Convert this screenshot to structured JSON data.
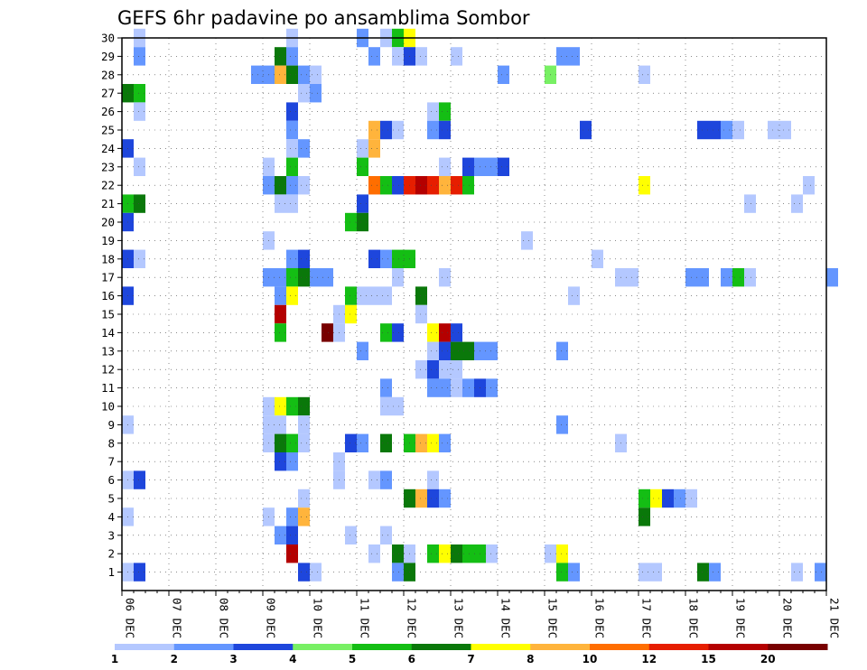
{
  "chart_data": {
    "type": "heatmap",
    "title": "GEFS 6hr padavine po ansamblima Sombor",
    "xlabel": "",
    "ylabel": "",
    "x_tick_labels": [
      "06 DEC",
      "07 DEC",
      "08 DEC",
      "09 DEC",
      "10 DEC",
      "11 DEC",
      "12 DEC",
      "13 DEC",
      "14 DEC",
      "15 DEC",
      "16 DEC",
      "17 DEC",
      "18 DEC",
      "19 DEC",
      "20 DEC",
      "21 DEC"
    ],
    "y_tick_labels": [
      "1",
      "2",
      "3",
      "4",
      "5",
      "6",
      "7",
      "8",
      "9",
      "10",
      "11",
      "12",
      "13",
      "14",
      "15",
      "16",
      "17",
      "18",
      "19",
      "20",
      "21",
      "22",
      "23",
      "24",
      "25",
      "26",
      "27",
      "28",
      "29",
      "30"
    ],
    "x_unit": "6-hour step",
    "xlim_steps": [
      0,
      60
    ],
    "ylim_members": [
      0,
      30
    ],
    "grid": true,
    "colorbar": {
      "levels": [
        "1",
        "2",
        "3",
        "4",
        "5",
        "6",
        "7",
        "8",
        "10",
        "12",
        "15",
        "20"
      ],
      "colors": [
        "#b4c8ff",
        "#6496ff",
        "#1e46dc",
        "#78f064",
        "#14be14",
        "#0a780a",
        "#ffff00",
        "#ffb43c",
        "#ff6e00",
        "#e61e00",
        "#b40000",
        "#780000"
      ]
    },
    "cells_note": "each cell: step = 6-hour step index from 06 DEC 00Z, member = ensemble member (0 = control row below 1), bin = colorbar bin index",
    "cells": [
      {
        "step": 1,
        "member": 30,
        "bin": 0
      },
      {
        "step": 14,
        "member": 30,
        "bin": 0
      },
      {
        "step": 20,
        "member": 30,
        "bin": 1
      },
      {
        "step": 22,
        "member": 30,
        "bin": 0
      },
      {
        "step": 23,
        "member": 30,
        "bin": 4
      },
      {
        "step": 24,
        "member": 30,
        "bin": 6
      },
      {
        "step": 1,
        "member": 29,
        "bin": 1
      },
      {
        "step": 13,
        "member": 29,
        "bin": 5
      },
      {
        "step": 14,
        "member": 29,
        "bin": 1
      },
      {
        "step": 21,
        "member": 29,
        "bin": 1
      },
      {
        "step": 23,
        "member": 29,
        "bin": 0
      },
      {
        "step": 24,
        "member": 29,
        "bin": 2
      },
      {
        "step": 25,
        "member": 29,
        "bin": 0
      },
      {
        "step": 28,
        "member": 29,
        "bin": 0
      },
      {
        "step": 37,
        "member": 29,
        "bin": 1
      },
      {
        "step": 38,
        "member": 29,
        "bin": 1
      },
      {
        "step": 11,
        "member": 28,
        "bin": 1
      },
      {
        "step": 12,
        "member": 28,
        "bin": 1
      },
      {
        "step": 13,
        "member": 28,
        "bin": 7
      },
      {
        "step": 14,
        "member": 28,
        "bin": 5
      },
      {
        "step": 15,
        "member": 28,
        "bin": 1
      },
      {
        "step": 16,
        "member": 28,
        "bin": 0
      },
      {
        "step": 32,
        "member": 28,
        "bin": 1
      },
      {
        "step": 36,
        "member": 28,
        "bin": 3
      },
      {
        "step": 44,
        "member": 28,
        "bin": 0
      },
      {
        "step": 0,
        "member": 27,
        "bin": 5
      },
      {
        "step": 1,
        "member": 27,
        "bin": 4
      },
      {
        "step": 15,
        "member": 27,
        "bin": 0
      },
      {
        "step": 16,
        "member": 27,
        "bin": 1
      },
      {
        "step": 1,
        "member": 26,
        "bin": 0
      },
      {
        "step": 14,
        "member": 26,
        "bin": 2
      },
      {
        "step": 26,
        "member": 26,
        "bin": 0
      },
      {
        "step": 27,
        "member": 26,
        "bin": 4
      },
      {
        "step": 14,
        "member": 25,
        "bin": 1
      },
      {
        "step": 21,
        "member": 25,
        "bin": 7
      },
      {
        "step": 22,
        "member": 25,
        "bin": 2
      },
      {
        "step": 23,
        "member": 25,
        "bin": 0
      },
      {
        "step": 26,
        "member": 25,
        "bin": 1
      },
      {
        "step": 27,
        "member": 25,
        "bin": 2
      },
      {
        "step": 39,
        "member": 25,
        "bin": 2
      },
      {
        "step": 49,
        "member": 25,
        "bin": 2
      },
      {
        "step": 50,
        "member": 25,
        "bin": 2
      },
      {
        "step": 51,
        "member": 25,
        "bin": 1
      },
      {
        "step": 52,
        "member": 25,
        "bin": 0
      },
      {
        "step": 55,
        "member": 25,
        "bin": 0
      },
      {
        "step": 56,
        "member": 25,
        "bin": 0
      },
      {
        "step": 0,
        "member": 24,
        "bin": 2
      },
      {
        "step": 14,
        "member": 24,
        "bin": 0
      },
      {
        "step": 15,
        "member": 24,
        "bin": 1
      },
      {
        "step": 20,
        "member": 24,
        "bin": 0
      },
      {
        "step": 21,
        "member": 24,
        "bin": 7
      },
      {
        "step": 1,
        "member": 23,
        "bin": 0
      },
      {
        "step": 12,
        "member": 23,
        "bin": 0
      },
      {
        "step": 14,
        "member": 23,
        "bin": 4
      },
      {
        "step": 20,
        "member": 23,
        "bin": 4
      },
      {
        "step": 27,
        "member": 23,
        "bin": 0
      },
      {
        "step": 29,
        "member": 23,
        "bin": 2
      },
      {
        "step": 30,
        "member": 23,
        "bin": 1
      },
      {
        "step": 31,
        "member": 23,
        "bin": 1
      },
      {
        "step": 32,
        "member": 23,
        "bin": 2
      },
      {
        "step": 12,
        "member": 22,
        "bin": 1
      },
      {
        "step": 13,
        "member": 22,
        "bin": 5
      },
      {
        "step": 14,
        "member": 22,
        "bin": 1
      },
      {
        "step": 15,
        "member": 22,
        "bin": 0
      },
      {
        "step": 21,
        "member": 22,
        "bin": 8
      },
      {
        "step": 22,
        "member": 22,
        "bin": 4
      },
      {
        "step": 23,
        "member": 22,
        "bin": 2
      },
      {
        "step": 24,
        "member": 22,
        "bin": 9
      },
      {
        "step": 25,
        "member": 22,
        "bin": 10
      },
      {
        "step": 26,
        "member": 22,
        "bin": 9
      },
      {
        "step": 27,
        "member": 22,
        "bin": 7
      },
      {
        "step": 28,
        "member": 22,
        "bin": 9
      },
      {
        "step": 29,
        "member": 22,
        "bin": 4
      },
      {
        "step": 44,
        "member": 22,
        "bin": 6
      },
      {
        "step": 58,
        "member": 22,
        "bin": 0
      },
      {
        "step": 0,
        "member": 21,
        "bin": 4
      },
      {
        "step": 1,
        "member": 21,
        "bin": 5
      },
      {
        "step": 13,
        "member": 21,
        "bin": 0
      },
      {
        "step": 14,
        "member": 21,
        "bin": 0
      },
      {
        "step": 20,
        "member": 21,
        "bin": 2
      },
      {
        "step": 53,
        "member": 21,
        "bin": 0
      },
      {
        "step": 57,
        "member": 21,
        "bin": 0
      },
      {
        "step": 0,
        "member": 20,
        "bin": 2
      },
      {
        "step": 19,
        "member": 20,
        "bin": 4
      },
      {
        "step": 20,
        "member": 20,
        "bin": 5
      },
      {
        "step": 12,
        "member": 19,
        "bin": 0
      },
      {
        "step": 34,
        "member": 19,
        "bin": 0
      },
      {
        "step": 0,
        "member": 18,
        "bin": 2
      },
      {
        "step": 1,
        "member": 18,
        "bin": 0
      },
      {
        "step": 14,
        "member": 18,
        "bin": 1
      },
      {
        "step": 15,
        "member": 18,
        "bin": 2
      },
      {
        "step": 21,
        "member": 18,
        "bin": 2
      },
      {
        "step": 22,
        "member": 18,
        "bin": 1
      },
      {
        "step": 23,
        "member": 18,
        "bin": 4
      },
      {
        "step": 24,
        "member": 18,
        "bin": 4
      },
      {
        "step": 40,
        "member": 18,
        "bin": 0
      },
      {
        "step": 12,
        "member": 17,
        "bin": 1
      },
      {
        "step": 13,
        "member": 17,
        "bin": 1
      },
      {
        "step": 14,
        "member": 17,
        "bin": 4
      },
      {
        "step": 15,
        "member": 17,
        "bin": 5
      },
      {
        "step": 16,
        "member": 17,
        "bin": 1
      },
      {
        "step": 17,
        "member": 17,
        "bin": 1
      },
      {
        "step": 23,
        "member": 17,
        "bin": 0
      },
      {
        "step": 27,
        "member": 17,
        "bin": 0
      },
      {
        "step": 42,
        "member": 17,
        "bin": 0
      },
      {
        "step": 43,
        "member": 17,
        "bin": 0
      },
      {
        "step": 48,
        "member": 17,
        "bin": 1
      },
      {
        "step": 49,
        "member": 17,
        "bin": 1
      },
      {
        "step": 51,
        "member": 17,
        "bin": 1
      },
      {
        "step": 52,
        "member": 17,
        "bin": 4
      },
      {
        "step": 53,
        "member": 17,
        "bin": 0
      },
      {
        "step": 60,
        "member": 17,
        "bin": 1
      },
      {
        "step": 0,
        "member": 16,
        "bin": 2
      },
      {
        "step": 13,
        "member": 16,
        "bin": 1
      },
      {
        "step": 14,
        "member": 16,
        "bin": 6
      },
      {
        "step": 19,
        "member": 16,
        "bin": 4
      },
      {
        "step": 20,
        "member": 16,
        "bin": 0
      },
      {
        "step": 21,
        "member": 16,
        "bin": 0
      },
      {
        "step": 22,
        "member": 16,
        "bin": 0
      },
      {
        "step": 25,
        "member": 16,
        "bin": 5
      },
      {
        "step": 38,
        "member": 16,
        "bin": 0
      },
      {
        "step": 13,
        "member": 15,
        "bin": 10
      },
      {
        "step": 18,
        "member": 15,
        "bin": 0
      },
      {
        "step": 19,
        "member": 15,
        "bin": 6
      },
      {
        "step": 25,
        "member": 15,
        "bin": 0
      },
      {
        "step": 13,
        "member": 14,
        "bin": 4
      },
      {
        "step": 17,
        "member": 14,
        "bin": 11
      },
      {
        "step": 18,
        "member": 14,
        "bin": 0
      },
      {
        "step": 22,
        "member": 14,
        "bin": 4
      },
      {
        "step": 23,
        "member": 14,
        "bin": 2
      },
      {
        "step": 26,
        "member": 14,
        "bin": 6
      },
      {
        "step": 27,
        "member": 14,
        "bin": 10
      },
      {
        "step": 28,
        "member": 14,
        "bin": 2
      },
      {
        "step": 20,
        "member": 13,
        "bin": 1
      },
      {
        "step": 26,
        "member": 13,
        "bin": 0
      },
      {
        "step": 27,
        "member": 13,
        "bin": 2
      },
      {
        "step": 28,
        "member": 13,
        "bin": 5
      },
      {
        "step": 29,
        "member": 13,
        "bin": 5
      },
      {
        "step": 30,
        "member": 13,
        "bin": 1
      },
      {
        "step": 31,
        "member": 13,
        "bin": 1
      },
      {
        "step": 37,
        "member": 13,
        "bin": 1
      },
      {
        "step": 25,
        "member": 12,
        "bin": 0
      },
      {
        "step": 26,
        "member": 12,
        "bin": 2
      },
      {
        "step": 27,
        "member": 12,
        "bin": 0
      },
      {
        "step": 28,
        "member": 12,
        "bin": 0
      },
      {
        "step": 22,
        "member": 11,
        "bin": 1
      },
      {
        "step": 26,
        "member": 11,
        "bin": 1
      },
      {
        "step": 27,
        "member": 11,
        "bin": 1
      },
      {
        "step": 28,
        "member": 11,
        "bin": 0
      },
      {
        "step": 29,
        "member": 11,
        "bin": 1
      },
      {
        "step": 30,
        "member": 11,
        "bin": 2
      },
      {
        "step": 31,
        "member": 11,
        "bin": 1
      },
      {
        "step": 12,
        "member": 10,
        "bin": 0
      },
      {
        "step": 13,
        "member": 10,
        "bin": 6
      },
      {
        "step": 14,
        "member": 10,
        "bin": 4
      },
      {
        "step": 15,
        "member": 10,
        "bin": 5
      },
      {
        "step": 22,
        "member": 10,
        "bin": 0
      },
      {
        "step": 23,
        "member": 10,
        "bin": 0
      },
      {
        "step": 0,
        "member": 9,
        "bin": 0
      },
      {
        "step": 12,
        "member": 9,
        "bin": 0
      },
      {
        "step": 13,
        "member": 9,
        "bin": 0
      },
      {
        "step": 15,
        "member": 9,
        "bin": 0
      },
      {
        "step": 37,
        "member": 9,
        "bin": 1
      },
      {
        "step": 12,
        "member": 8,
        "bin": 0
      },
      {
        "step": 13,
        "member": 8,
        "bin": 5
      },
      {
        "step": 14,
        "member": 8,
        "bin": 4
      },
      {
        "step": 15,
        "member": 8,
        "bin": 0
      },
      {
        "step": 19,
        "member": 8,
        "bin": 2
      },
      {
        "step": 20,
        "member": 8,
        "bin": 1
      },
      {
        "step": 22,
        "member": 8,
        "bin": 5
      },
      {
        "step": 24,
        "member": 8,
        "bin": 4
      },
      {
        "step": 25,
        "member": 8,
        "bin": 7
      },
      {
        "step": 26,
        "member": 8,
        "bin": 6
      },
      {
        "step": 27,
        "member": 8,
        "bin": 1
      },
      {
        "step": 42,
        "member": 8,
        "bin": 0
      },
      {
        "step": 13,
        "member": 7,
        "bin": 2
      },
      {
        "step": 14,
        "member": 7,
        "bin": 1
      },
      {
        "step": 18,
        "member": 7,
        "bin": 0
      },
      {
        "step": 0,
        "member": 6,
        "bin": 0
      },
      {
        "step": 1,
        "member": 6,
        "bin": 2
      },
      {
        "step": 18,
        "member": 6,
        "bin": 0
      },
      {
        "step": 21,
        "member": 6,
        "bin": 0
      },
      {
        "step": 22,
        "member": 6,
        "bin": 1
      },
      {
        "step": 26,
        "member": 6,
        "bin": 0
      },
      {
        "step": 15,
        "member": 5,
        "bin": 0
      },
      {
        "step": 24,
        "member": 5,
        "bin": 5
      },
      {
        "step": 25,
        "member": 5,
        "bin": 7
      },
      {
        "step": 26,
        "member": 5,
        "bin": 2
      },
      {
        "step": 27,
        "member": 5,
        "bin": 1
      },
      {
        "step": 44,
        "member": 5,
        "bin": 4
      },
      {
        "step": 45,
        "member": 5,
        "bin": 6
      },
      {
        "step": 46,
        "member": 5,
        "bin": 2
      },
      {
        "step": 47,
        "member": 5,
        "bin": 1
      },
      {
        "step": 48,
        "member": 5,
        "bin": 0
      },
      {
        "step": 0,
        "member": 4,
        "bin": 0
      },
      {
        "step": 12,
        "member": 4,
        "bin": 0
      },
      {
        "step": 14,
        "member": 4,
        "bin": 1
      },
      {
        "step": 15,
        "member": 4,
        "bin": 7
      },
      {
        "step": 44,
        "member": 4,
        "bin": 5
      },
      {
        "step": 13,
        "member": 3,
        "bin": 1
      },
      {
        "step": 14,
        "member": 3,
        "bin": 2
      },
      {
        "step": 19,
        "member": 3,
        "bin": 0
      },
      {
        "step": 22,
        "member": 3,
        "bin": 0
      },
      {
        "step": 14,
        "member": 2,
        "bin": 10
      },
      {
        "step": 21,
        "member": 2,
        "bin": 0
      },
      {
        "step": 23,
        "member": 2,
        "bin": 5
      },
      {
        "step": 24,
        "member": 2,
        "bin": 0
      },
      {
        "step": 26,
        "member": 2,
        "bin": 4
      },
      {
        "step": 27,
        "member": 2,
        "bin": 6
      },
      {
        "step": 28,
        "member": 2,
        "bin": 5
      },
      {
        "step": 29,
        "member": 2,
        "bin": 4
      },
      {
        "step": 30,
        "member": 2,
        "bin": 4
      },
      {
        "step": 31,
        "member": 2,
        "bin": 0
      },
      {
        "step": 36,
        "member": 2,
        "bin": 0
      },
      {
        "step": 37,
        "member": 2,
        "bin": 6
      },
      {
        "step": 0,
        "member": 1,
        "bin": 0
      },
      {
        "step": 1,
        "member": 1,
        "bin": 2
      },
      {
        "step": 15,
        "member": 1,
        "bin": 2
      },
      {
        "step": 16,
        "member": 1,
        "bin": 0
      },
      {
        "step": 23,
        "member": 1,
        "bin": 1
      },
      {
        "step": 24,
        "member": 1,
        "bin": 5
      },
      {
        "step": 37,
        "member": 1,
        "bin": 4
      },
      {
        "step": 38,
        "member": 1,
        "bin": 1
      },
      {
        "step": 44,
        "member": 1,
        "bin": 0
      },
      {
        "step": 45,
        "member": 1,
        "bin": 0
      },
      {
        "step": 49,
        "member": 1,
        "bin": 5
      },
      {
        "step": 50,
        "member": 1,
        "bin": 1
      },
      {
        "step": 57,
        "member": 1,
        "bin": 0
      },
      {
        "step": 59,
        "member": 1,
        "bin": 1
      }
    ]
  }
}
